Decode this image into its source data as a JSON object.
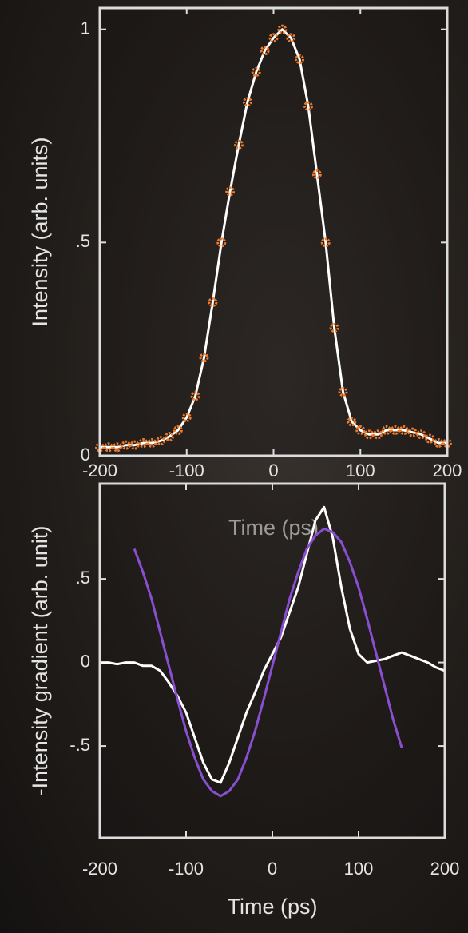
{
  "chart_data": [
    {
      "type": "line",
      "x_label": "Time (ps)",
      "y_label": "Intensity (arb. units)",
      "x": [
        -200,
        -190,
        -180,
        -170,
        -160,
        -150,
        -140,
        -130,
        -120,
        -110,
        -100,
        -90,
        -80,
        -70,
        -60,
        -50,
        -40,
        -30,
        -20,
        -10,
        0,
        10,
        20,
        30,
        40,
        50,
        60,
        70,
        80,
        90,
        100,
        110,
        120,
        130,
        140,
        150,
        160,
        170,
        180,
        190,
        200
      ],
      "series": [
        {
          "color": "#ffffff",
          "style": "line",
          "values": [
            0.02,
            0.02,
            0.02,
            0.025,
            0.025,
            0.03,
            0.03,
            0.035,
            0.045,
            0.06,
            0.09,
            0.14,
            0.23,
            0.36,
            0.5,
            0.62,
            0.73,
            0.83,
            0.9,
            0.95,
            0.98,
            1.0,
            0.98,
            0.93,
            0.82,
            0.66,
            0.5,
            0.3,
            0.15,
            0.08,
            0.06,
            0.05,
            0.05,
            0.06,
            0.06,
            0.06,
            0.055,
            0.05,
            0.04,
            0.03,
            0.03
          ]
        },
        {
          "color": "#f07a2a",
          "style": "markers",
          "values": [
            0.02,
            0.02,
            0.02,
            0.025,
            0.025,
            0.03,
            0.03,
            0.035,
            0.045,
            0.06,
            0.09,
            0.14,
            0.23,
            0.36,
            0.5,
            0.62,
            0.73,
            0.83,
            0.9,
            0.95,
            0.98,
            1.0,
            0.98,
            0.93,
            0.82,
            0.66,
            0.5,
            0.3,
            0.15,
            0.08,
            0.06,
            0.05,
            0.05,
            0.06,
            0.06,
            0.06,
            0.055,
            0.05,
            0.04,
            0.03,
            0.03
          ]
        }
      ],
      "xlim": [
        -200,
        200
      ],
      "xticks": [
        -200,
        -100,
        0,
        100,
        200
      ],
      "ylim": [
        0,
        1.05
      ],
      "yticks": [
        0,
        {
          "value": 0.5,
          "label": ".5"
        },
        1
      ],
      "grid": false
    },
    {
      "type": "line",
      "x_label": "Time (ps)",
      "y_label": "-Intensity gradient (arb. unit)",
      "x": [
        -200,
        -190,
        -180,
        -170,
        -160,
        -150,
        -140,
        -130,
        -120,
        -110,
        -100,
        -90,
        -80,
        -70,
        -60,
        -50,
        -40,
        -30,
        -20,
        -10,
        0,
        10,
        20,
        30,
        40,
        50,
        60,
        70,
        80,
        90,
        100,
        110,
        120,
        130,
        140,
        150,
        160,
        170,
        180,
        190,
        200
      ],
      "series": [
        {
          "color": "#ffffff",
          "style": "step",
          "values": [
            0,
            0,
            -0.01,
            0,
            0,
            -0.02,
            -0.02,
            -0.05,
            -0.12,
            -0.2,
            -0.3,
            -0.45,
            -0.6,
            -0.7,
            -0.72,
            -0.6,
            -0.45,
            -0.3,
            -0.18,
            -0.05,
            0.05,
            0.15,
            0.3,
            0.45,
            0.65,
            0.85,
            0.93,
            0.75,
            0.45,
            0.2,
            0.05,
            0,
            0.01,
            0.02,
            0.04,
            0.06,
            0.04,
            0.02,
            0,
            -0.03,
            -0.05
          ]
        },
        {
          "color": "#8a4fd0",
          "style": "line",
          "values": [
            null,
            null,
            null,
            null,
            0.68,
            0.54,
            0.38,
            0.18,
            -0.02,
            -0.22,
            -0.41,
            -0.57,
            -0.7,
            -0.77,
            -0.8,
            -0.77,
            -0.7,
            -0.57,
            -0.41,
            -0.22,
            -0.02,
            0.18,
            0.38,
            0.54,
            0.68,
            0.76,
            0.8,
            0.78,
            0.72,
            0.6,
            0.45,
            0.26,
            0.06,
            -0.14,
            -0.34,
            -0.51,
            null,
            null,
            null,
            null,
            null
          ]
        }
      ],
      "xlim": [
        -200,
        200
      ],
      "xticks": [
        -200,
        -100,
        0,
        100,
        200
      ],
      "ylim": [
        -1.05,
        1.07
      ],
      "yticks": [
        {
          "value": -0.5,
          "label": "-.5"
        },
        0,
        {
          "value": 0.5,
          "label": ".5"
        }
      ],
      "grid": false
    }
  ]
}
